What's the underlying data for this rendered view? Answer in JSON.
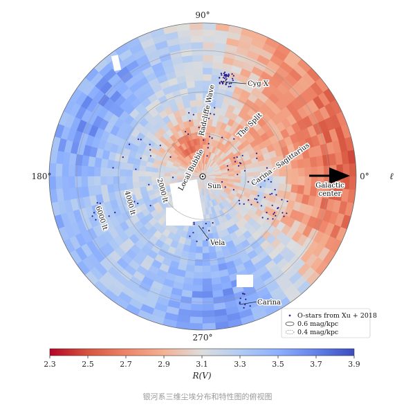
{
  "chart_data": {
    "type": "heatmap",
    "projection": "polar face-on view of the Galactic disk centred on the Sun",
    "longitude_labels": [
      {
        "angle_deg": 90,
        "text": "90°"
      },
      {
        "angle_deg": 0,
        "text": "0°"
      },
      {
        "angle_deg": 180,
        "text": "180°"
      },
      {
        "angle_deg": 270,
        "text": "270°"
      }
    ],
    "longitude_axis_symbol": "ℓ",
    "distance_rings": [
      {
        "distance_pc": 2000,
        "label": "2000 lt"
      },
      {
        "distance_pc": 4000,
        "label": "4000 lt"
      },
      {
        "distance_pc": 6000,
        "label": "6000 lt"
      }
    ],
    "annotations": [
      {
        "text": "Cyg X",
        "l_deg": 80,
        "d_pc": 1500
      },
      {
        "text": "Radcliffe Wave",
        "l_deg": 100,
        "d_pc": 1000
      },
      {
        "text": "The Split",
        "l_deg": 45,
        "d_pc": 1300
      },
      {
        "text": "Local Bubble",
        "l_deg": 120,
        "d_pc": 150
      },
      {
        "text": "Sun",
        "l_deg": 0,
        "d_pc": 0
      },
      {
        "text": "Carina - Sagittarius",
        "l_deg": 10,
        "d_pc": 1500
      },
      {
        "text": "Galactic",
        "l_deg": 0,
        "d_pc": 2700
      },
      {
        "text": "center",
        "l_deg": 0,
        "d_pc": 2700
      },
      {
        "text": "Vela",
        "l_deg": 265,
        "d_pc": 900
      },
      {
        "text": "Carina",
        "l_deg": 290,
        "d_pc": 2400
      }
    ],
    "colorbar": {
      "title": "R(V)",
      "min": 2.3,
      "max": 3.9,
      "ticks": [
        "2.3",
        "2.5",
        "2.7",
        "2.9",
        "3.1",
        "3.3",
        "3.5",
        "3.7",
        "3.9"
      ],
      "colormap": "coolwarm",
      "low_color": "#b40426",
      "mid_color": "#dddddd",
      "high_color": "#3b4cc0"
    },
    "legend": [
      {
        "marker": "point",
        "label": "O-stars from Xu + 2018"
      },
      {
        "marker": "solid-contour",
        "label": "0.6 mag/kpc"
      },
      {
        "marker": "dashed-contour",
        "label": "0.4 mag/kpc"
      }
    ],
    "pattern_notes": "R(V) low (red) toward the Galactic centre directions and inner arms; high (blue) in the outer disk and toward Carina/Vela; white = no data"
  },
  "caption": "银河系三维尘埃分布和特性图的俯视图"
}
